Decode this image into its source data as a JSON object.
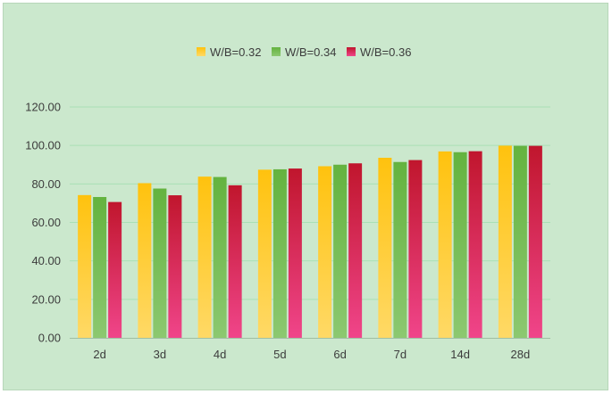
{
  "chart_data": {
    "type": "bar",
    "title": "",
    "xlabel": "",
    "ylabel": "",
    "categories": [
      "2d",
      "3d",
      "4d",
      "5d",
      "6d",
      "7d",
      "14d",
      "28d"
    ],
    "series": [
      {
        "name": "W/B=0.32",
        "color_top": "#ffc20e",
        "color_bottom": "#ffd966",
        "values": [
          74.2,
          80.4,
          83.8,
          87.4,
          89.2,
          93.6,
          96.9,
          99.9
        ]
      },
      {
        "name": "W/B=0.34",
        "color_top": "#64b33f",
        "color_bottom": "#8cc870",
        "values": [
          73.2,
          77.6,
          83.6,
          87.6,
          90.0,
          91.4,
          96.5,
          99.8
        ]
      },
      {
        "name": "W/B=0.36",
        "color_top": "#c0162d",
        "color_bottom": "#f0458a",
        "values": [
          70.6,
          74.1,
          79.3,
          88.0,
          90.7,
          92.4,
          97.0,
          99.8
        ]
      }
    ],
    "ylim": [
      0,
      120
    ],
    "yticks": [
      "0.00",
      "20.00",
      "40.00",
      "60.00",
      "80.00",
      "100.00",
      "120.00"
    ],
    "ytick_values": [
      0,
      20,
      40,
      60,
      80,
      100,
      120
    ],
    "grid": true,
    "legend_position": "top-center",
    "background_color": "#cbe8cd",
    "gridline_color": "#a9e0b5"
  }
}
